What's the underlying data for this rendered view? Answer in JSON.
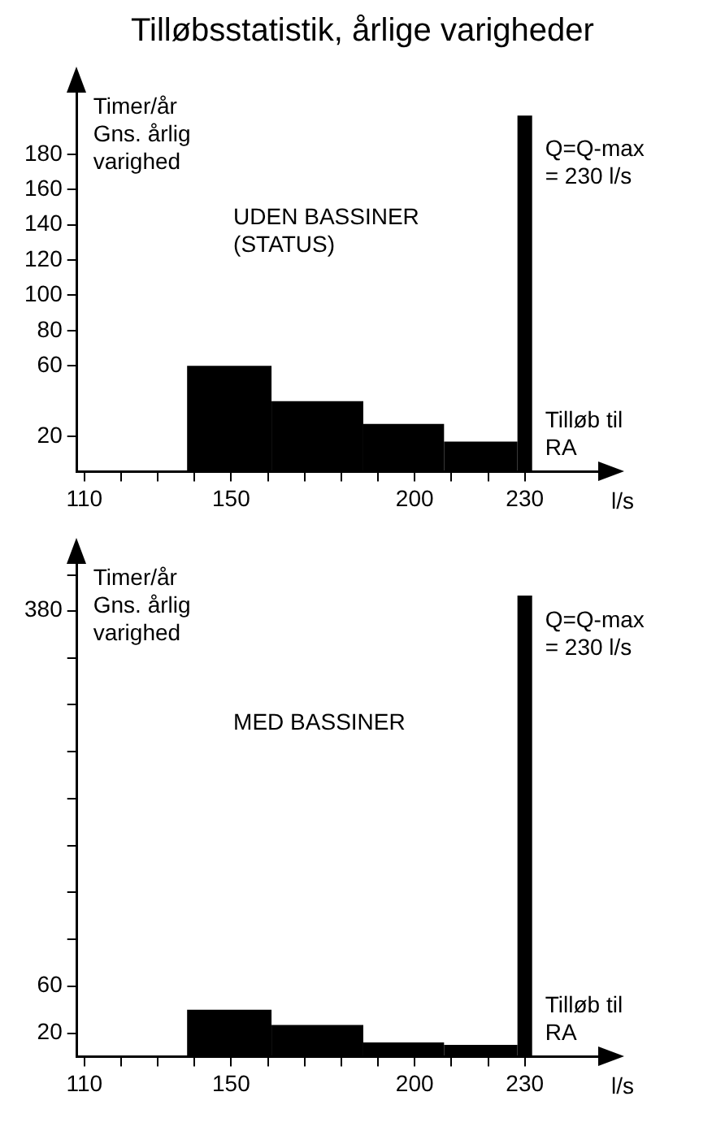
{
  "chart_data": [
    {
      "type": "histogram",
      "title": "Tilløbsstatistik, årlige varigheder",
      "ylabel": "Timer/år Gns. årlig varighed",
      "xlabel": "l/s",
      "bins": [
        138,
        161,
        186,
        208,
        228,
        232
      ],
      "values": [
        60,
        40,
        27,
        17,
        202
      ],
      "color": "#000000",
      "xlim": [
        108,
        250
      ],
      "xticks": [
        110,
        {
          "value": 120,
          "label": null
        },
        {
          "value": 130,
          "label": null
        },
        {
          "value": 140,
          "label": null
        },
        150,
        {
          "value": 160,
          "label": null
        },
        {
          "value": 170,
          "label": null
        },
        {
          "value": 180,
          "label": null
        },
        {
          "value": 190,
          "label": null
        },
        200,
        {
          "value": 210,
          "label": null
        },
        {
          "value": 220,
          "label": null
        },
        230
      ],
      "ylim": [
        0,
        215
      ],
      "yticks": [
        20,
        60,
        80,
        100,
        120,
        140,
        160,
        180
      ],
      "annotations": [
        "UDEN BASSINER (STATUS)",
        "Q=Q-max = 230 l/s",
        "Tilløb til RA"
      ],
      "grid": false,
      "legend": false
    },
    {
      "type": "histogram",
      "ylabel": "Timer/år Gns. årlig varighed",
      "xlabel": "l/s",
      "bins": [
        138,
        161,
        186,
        208,
        228,
        232
      ],
      "values": [
        40,
        27,
        12,
        10,
        393
      ],
      "color": "#000000",
      "xlim": [
        108,
        250
      ],
      "xticks": [
        110,
        {
          "value": 120,
          "label": null
        },
        {
          "value": 130,
          "label": null
        },
        {
          "value": 140,
          "label": null
        },
        150,
        {
          "value": 160,
          "label": null
        },
        {
          "value": 170,
          "label": null
        },
        {
          "value": 180,
          "label": null
        },
        {
          "value": 190,
          "label": null
        },
        200,
        {
          "value": 210,
          "label": null
        },
        {
          "value": 220,
          "label": null
        },
        230
      ],
      "ylim": [
        0,
        420
      ],
      "yticks": [
        20,
        60,
        {
          "value": 100,
          "label": null
        },
        {
          "value": 140,
          "label": null
        },
        {
          "value": 180,
          "label": null
        },
        {
          "value": 220,
          "label": null
        },
        {
          "value": 260,
          "label": null
        },
        {
          "value": 300,
          "label": null
        },
        {
          "value": 340,
          "label": null
        },
        380,
        {
          "value": 410,
          "label": null
        }
      ],
      "annotations": [
        "MED BASSINER",
        "Q=Q-max = 230 l/s",
        "Tilløb til RA"
      ],
      "grid": false,
      "legend": false
    }
  ]
}
